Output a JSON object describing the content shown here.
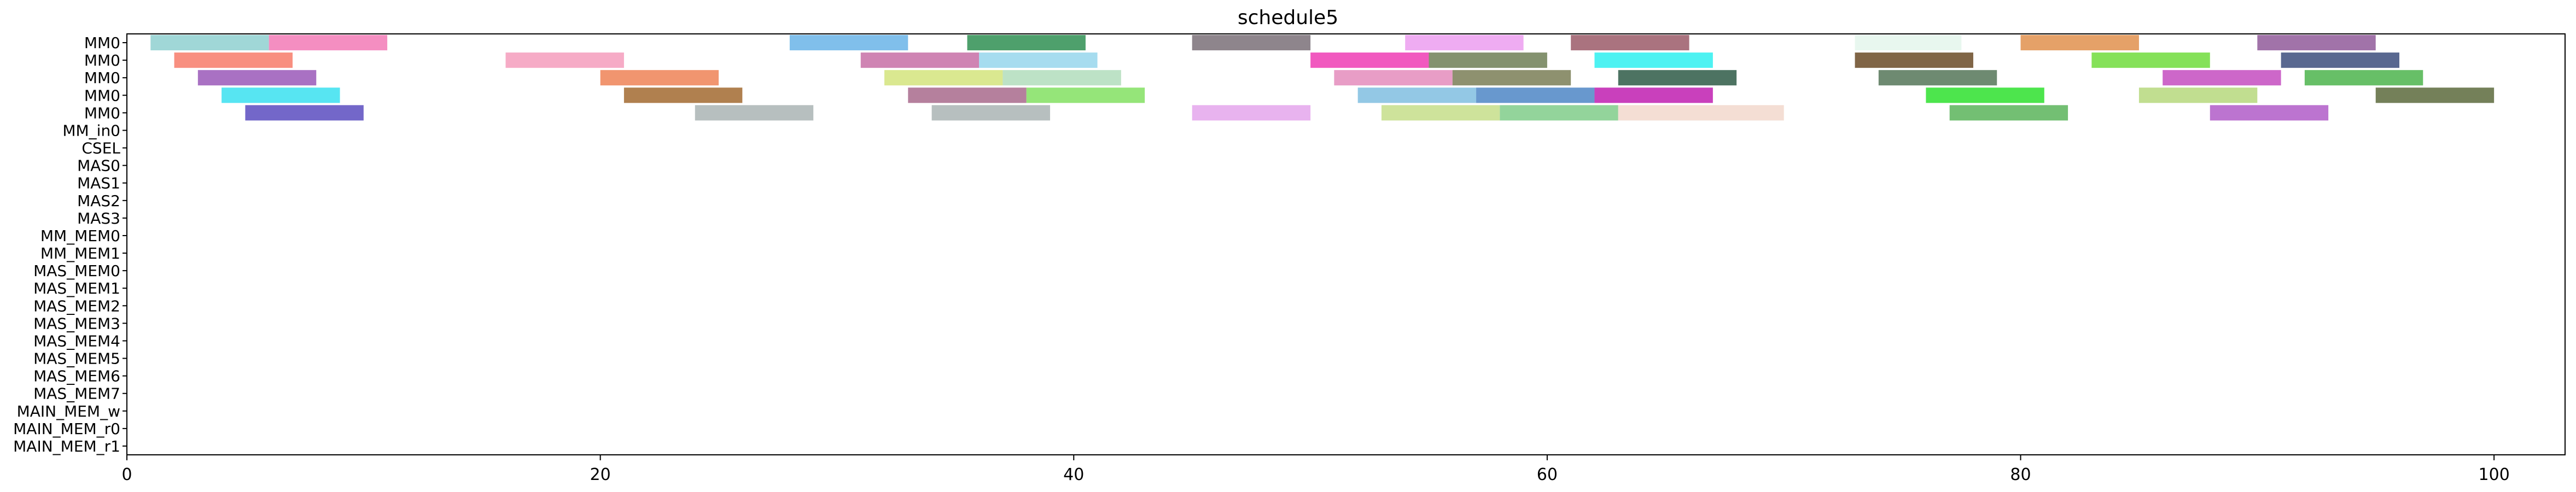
{
  "chart_data": {
    "type": "gantt",
    "title": "schedule5",
    "xlabel": "",
    "ylabel": "",
    "xlim": [
      0,
      103
    ],
    "x_ticks": [
      0,
      20,
      40,
      60,
      80,
      100
    ],
    "grid": false,
    "legend": "none",
    "rows": [
      "MM0",
      "MM0",
      "MM0",
      "MM0",
      "MM0",
      "MM_in0",
      "CSEL",
      "MAS0",
      "MAS1",
      "MAS2",
      "MAS3",
      "MM_MEM0",
      "MM_MEM1",
      "MAS_MEM0",
      "MAS_MEM1",
      "MAS_MEM2",
      "MAS_MEM3",
      "MAS_MEM4",
      "MAS_MEM5",
      "MAS_MEM6",
      "MAS_MEM7",
      "MAIN_MEM_w",
      "MAIN_MEM_r0",
      "MAIN_MEM_r1"
    ],
    "tasks": [
      {
        "row": 0,
        "start": 1,
        "end": 6,
        "color": "#8fd0d0"
      },
      {
        "row": 0,
        "start": 6,
        "end": 11,
        "color": "#f27ab6"
      },
      {
        "row": 0,
        "start": 28,
        "end": 33,
        "color": "#6ab4e8"
      },
      {
        "row": 0,
        "start": 35.5,
        "end": 40.5,
        "color": "#2f8f52"
      },
      {
        "row": 0,
        "start": 45,
        "end": 50,
        "color": "#7a7078"
      },
      {
        "row": 0,
        "start": 54,
        "end": 59,
        "color": "#ec9ef0"
      },
      {
        "row": 0,
        "start": 61,
        "end": 66,
        "color": "#9b5a68"
      },
      {
        "row": 0,
        "start": 73,
        "end": 77.5,
        "color": "#e4f6ec"
      },
      {
        "row": 0,
        "start": 80,
        "end": 85,
        "color": "#e0904e"
      },
      {
        "row": 0,
        "start": 90,
        "end": 95,
        "color": "#905a9a"
      },
      {
        "row": 1,
        "start": 2,
        "end": 7,
        "color": "#f77b6a"
      },
      {
        "row": 1,
        "start": 16,
        "end": 21,
        "color": "#f49cbc"
      },
      {
        "row": 1,
        "start": 31,
        "end": 36,
        "color": "#c76ea6"
      },
      {
        "row": 1,
        "start": 36,
        "end": 41,
        "color": "#96d6ec"
      },
      {
        "row": 1,
        "start": 50,
        "end": 55,
        "color": "#ef3cb4"
      },
      {
        "row": 1,
        "start": 55,
        "end": 60,
        "color": "#6e7f56"
      },
      {
        "row": 1,
        "start": 62,
        "end": 67,
        "color": "#2ef0f0"
      },
      {
        "row": 1,
        "start": 73,
        "end": 78,
        "color": "#6a4a26"
      },
      {
        "row": 1,
        "start": 83,
        "end": 88,
        "color": "#70dc3c"
      },
      {
        "row": 1,
        "start": 91,
        "end": 96,
        "color": "#3c4e7c"
      },
      {
        "row": 2,
        "start": 3,
        "end": 8,
        "color": "#9a58b8"
      },
      {
        "row": 2,
        "start": 20,
        "end": 25,
        "color": "#ee8256"
      },
      {
        "row": 2,
        "start": 32,
        "end": 37,
        "color": "#d4e47c"
      },
      {
        "row": 2,
        "start": 37,
        "end": 42,
        "color": "#b2ddbc"
      },
      {
        "row": 2,
        "start": 51,
        "end": 56,
        "color": "#e48cbc"
      },
      {
        "row": 2,
        "start": 56,
        "end": 61,
        "color": "#7a7e56"
      },
      {
        "row": 2,
        "start": 63,
        "end": 68,
        "color": "#2e5a46"
      },
      {
        "row": 2,
        "start": 74,
        "end": 79,
        "color": "#557658"
      },
      {
        "row": 2,
        "start": 86,
        "end": 91,
        "color": "#c44cc0"
      },
      {
        "row": 2,
        "start": 92,
        "end": 97,
        "color": "#4cb44c"
      },
      {
        "row": 3,
        "start": 4,
        "end": 9,
        "color": "#3ae0f0"
      },
      {
        "row": 3,
        "start": 21,
        "end": 26,
        "color": "#a26a30"
      },
      {
        "row": 3,
        "start": 33,
        "end": 38,
        "color": "#a86a8c"
      },
      {
        "row": 3,
        "start": 38,
        "end": 43,
        "color": "#82e062"
      },
      {
        "row": 3,
        "start": 52,
        "end": 57,
        "color": "#80bee0"
      },
      {
        "row": 3,
        "start": 57,
        "end": 62,
        "color": "#4e86c6"
      },
      {
        "row": 3,
        "start": 62,
        "end": 67,
        "color": "#c01eb0"
      },
      {
        "row": 3,
        "start": 76,
        "end": 81,
        "color": "#2ee02e"
      },
      {
        "row": 3,
        "start": 85,
        "end": 90,
        "color": "#b6d87c"
      },
      {
        "row": 3,
        "start": 95,
        "end": 100,
        "color": "#5c6a3c"
      },
      {
        "row": 4,
        "start": 5,
        "end": 10,
        "color": "#5a4cc0"
      },
      {
        "row": 4,
        "start": 24,
        "end": 29,
        "color": "#aab4b4"
      },
      {
        "row": 4,
        "start": 34,
        "end": 39,
        "color": "#aab4b4"
      },
      {
        "row": 4,
        "start": 45,
        "end": 50,
        "color": "#e4a6ec"
      },
      {
        "row": 4,
        "start": 53,
        "end": 58,
        "color": "#c6de8a"
      },
      {
        "row": 4,
        "start": 58,
        "end": 63,
        "color": "#80cc8a"
      },
      {
        "row": 4,
        "start": 63,
        "end": 70,
        "color": "#f2d8cc"
      },
      {
        "row": 4,
        "start": 77,
        "end": 82,
        "color": "#5ab45a"
      },
      {
        "row": 4,
        "start": 88,
        "end": 93,
        "color": "#b05cc8"
      }
    ]
  }
}
